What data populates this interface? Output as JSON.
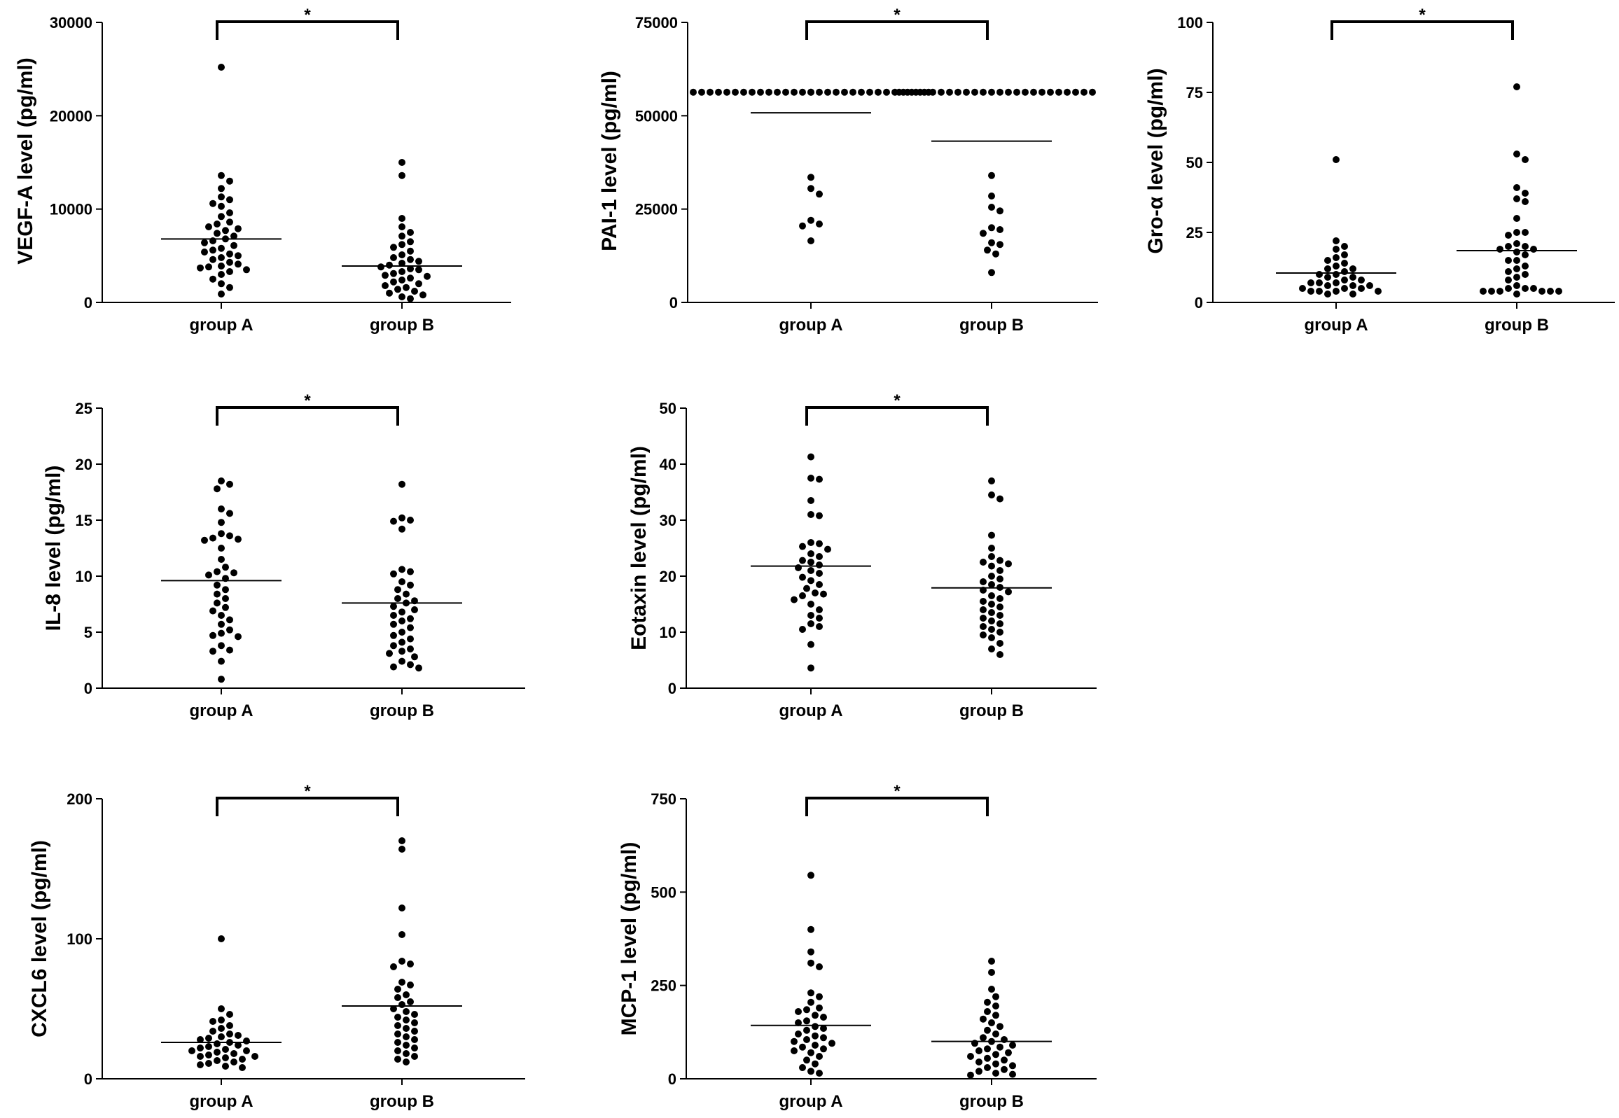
{
  "chart_data": [
    {
      "type": "scatter",
      "ylabel": "VEGF-A level (pg/ml)",
      "ylim": [
        0,
        30000
      ],
      "yticks": [
        0,
        10000,
        20000,
        30000
      ],
      "categories": [
        "group A",
        "group B"
      ],
      "means": [
        6800,
        3900
      ],
      "significance": "*",
      "series": [
        {
          "name": "group A",
          "values": [
            25200,
            13600,
            13000,
            12200,
            11300,
            11000,
            10600,
            10300,
            9600,
            9200,
            8600,
            8400,
            8100,
            7900,
            7700,
            7400,
            7100,
            6800,
            6600,
            6400,
            6100,
            5800,
            5600,
            5400,
            5200,
            5000,
            4800,
            4600,
            4300,
            4100,
            3900,
            3800,
            3700,
            3500,
            3300,
            3000,
            2500,
            2000,
            1600,
            900
          ]
        },
        {
          "name": "group B",
          "values": [
            15000,
            13600,
            9000,
            8100,
            7500,
            7100,
            6500,
            6200,
            5900,
            5500,
            5100,
            4800,
            4600,
            4400,
            4200,
            4000,
            3800,
            3600,
            3500,
            3300,
            3100,
            2900,
            2800,
            2600,
            2400,
            2200,
            2000,
            1800,
            1600,
            1400,
            1200,
            1000,
            800,
            600,
            400
          ]
        }
      ]
    },
    {
      "type": "scatter",
      "ylabel": "PAI-1 level (pg/ml)",
      "ylim": [
        0,
        75000
      ],
      "yticks": [
        0,
        25000,
        50000,
        75000
      ],
      "categories": [
        "group A",
        "group B"
      ],
      "means": [
        50800,
        43200
      ],
      "significance": "*",
      "series": [
        {
          "name": "group A",
          "values": [
            56300,
            56300,
            56300,
            56300,
            56300,
            56300,
            56300,
            56300,
            56300,
            56300,
            56300,
            56300,
            56300,
            56300,
            56300,
            56300,
            56300,
            56300,
            56300,
            56300,
            56300,
            56300,
            56300,
            56300,
            56300,
            56300,
            56300,
            56300,
            56300,
            56300,
            33500,
            30500,
            29000,
            22000,
            21000,
            20500,
            16500
          ]
        },
        {
          "name": "group B",
          "values": [
            56300,
            56300,
            56300,
            56300,
            56300,
            56300,
            56300,
            56300,
            56300,
            56300,
            56300,
            56300,
            56300,
            56300,
            56300,
            56300,
            56300,
            56300,
            56300,
            56300,
            56300,
            56300,
            56300,
            56300,
            34000,
            28500,
            25500,
            24500,
            20000,
            19500,
            18500,
            16000,
            15500,
            14000,
            13000,
            8000
          ]
        }
      ]
    },
    {
      "type": "scatter",
      "ylabel": "Gro-α level (pg/ml)",
      "ylim": [
        0,
        100
      ],
      "yticks": [
        0,
        25,
        50,
        75,
        100
      ],
      "categories": [
        "group A",
        "group B"
      ],
      "means": [
        10.5,
        18.5
      ],
      "significance": "*",
      "series": [
        {
          "name": "group A",
          "values": [
            51,
            22,
            20,
            19,
            17,
            16,
            15,
            14,
            13,
            12,
            12,
            11,
            10,
            10,
            9,
            9,
            8,
            8,
            7,
            7,
            7,
            6,
            6,
            6,
            5,
            5,
            5,
            4,
            4,
            4,
            4,
            3,
            3
          ]
        },
        {
          "name": "group B",
          "values": [
            77,
            53,
            51,
            41,
            39,
            37,
            36,
            30,
            25,
            25,
            24,
            21,
            20,
            20,
            19,
            19,
            18,
            17,
            15,
            15,
            13,
            12,
            11,
            10,
            9,
            8,
            6,
            5,
            5,
            5,
            4,
            4,
            4,
            4,
            4,
            4,
            3
          ]
        }
      ]
    },
    {
      "type": "scatter",
      "ylabel": "IL-8 level (pg/ml)",
      "ylim": [
        0,
        25
      ],
      "yticks": [
        0,
        5,
        10,
        15,
        20,
        25
      ],
      "categories": [
        "group A",
        "group B"
      ],
      "means": [
        9.6,
        7.6
      ],
      "significance": "*",
      "series": [
        {
          "name": "group A",
          "values": [
            18.5,
            18.2,
            17.8,
            16,
            15.6,
            14.8,
            13.8,
            13.6,
            13.4,
            13.3,
            13.2,
            12.5,
            11.5,
            10.8,
            10.4,
            10.3,
            10.1,
            9.8,
            9.2,
            8.8,
            8.4,
            8.0,
            7.6,
            7.2,
            6.9,
            6.5,
            6.1,
            5.7,
            5.2,
            4.9,
            4.7,
            4.6,
            3.8,
            3.4,
            3.3,
            2.4,
            0.8
          ]
        },
        {
          "name": "group B",
          "values": [
            18.2,
            15.2,
            15.0,
            14.9,
            14.2,
            10.6,
            10.4,
            10.2,
            9.5,
            9.2,
            8.8,
            8.4,
            8.0,
            7.8,
            7.6,
            7.3,
            7.0,
            6.8,
            6.5,
            6.2,
            6.0,
            5.7,
            5.4,
            5.0,
            4.7,
            4.4,
            4.1,
            3.8,
            3.5,
            3.3,
            3.1,
            2.8,
            2.4,
            2.1,
            1.9,
            1.8
          ]
        }
      ]
    },
    {
      "type": "scatter",
      "ylabel": "Eotaxin level (pg/ml)",
      "ylim": [
        0,
        50
      ],
      "yticks": [
        0,
        10,
        20,
        30,
        40,
        50
      ],
      "categories": [
        "group A",
        "group B"
      ],
      "means": [
        21.8,
        17.9
      ],
      "significance": "*",
      "series": [
        {
          "name": "group A",
          "values": [
            41.3,
            37.5,
            37.3,
            33.5,
            31.0,
            30.8,
            26.0,
            25.8,
            25.3,
            24.8,
            24.0,
            23.5,
            22.8,
            22.5,
            22.0,
            21.5,
            21.0,
            20.5,
            19.8,
            19.2,
            18.5,
            17.8,
            17.0,
            16.8,
            16.5,
            15.8,
            15.0,
            14.0,
            13.0,
            12.5,
            11.5,
            11.0,
            10.5,
            7.8,
            3.6
          ]
        },
        {
          "name": "group B",
          "values": [
            37.0,
            34.5,
            33.8,
            27.3,
            25.0,
            23.5,
            22.8,
            22.5,
            22.2,
            21.8,
            21.0,
            20.0,
            19.5,
            19.0,
            18.5,
            18.0,
            17.5,
            17.2,
            16.5,
            16.0,
            15.5,
            15.0,
            14.5,
            14.0,
            13.5,
            13.0,
            12.5,
            12.0,
            11.5,
            11.0,
            10.5,
            10.0,
            9.5,
            9.0,
            8.0,
            7.0,
            6.0
          ]
        }
      ]
    },
    {
      "type": "scatter",
      "ylabel": "CXCL6 level (pg/ml)",
      "ylim": [
        0,
        200
      ],
      "yticks": [
        0,
        100,
        200
      ],
      "categories": [
        "group A",
        "group B"
      ],
      "means": [
        26,
        52
      ],
      "significance": "*",
      "series": [
        {
          "name": "group A",
          "values": [
            100,
            50,
            46,
            42,
            41,
            38,
            36,
            34,
            32,
            31,
            30,
            29,
            28,
            27,
            26,
            25,
            24,
            23,
            22,
            21,
            20,
            20,
            19,
            18,
            17,
            16,
            16,
            15,
            14,
            13,
            12,
            11,
            10,
            9,
            8
          ]
        },
        {
          "name": "group B",
          "values": [
            170,
            164,
            122,
            103,
            84,
            82,
            80,
            69,
            67,
            64,
            60,
            58,
            55,
            53,
            50,
            48,
            46,
            44,
            42,
            40,
            38,
            36,
            34,
            32,
            30,
            28,
            26,
            24,
            22,
            20,
            18,
            16,
            14,
            12
          ]
        }
      ]
    },
    {
      "type": "scatter",
      "ylabel": "MCP-1 level (pg/ml)",
      "ylim": [
        0,
        750
      ],
      "yticks": [
        0,
        250,
        500,
        750
      ],
      "categories": [
        "group A",
        "group B"
      ],
      "means": [
        143,
        100
      ],
      "significance": "*",
      "series": [
        {
          "name": "group A",
          "values": [
            545,
            400,
            340,
            310,
            300,
            230,
            220,
            205,
            190,
            185,
            180,
            170,
            165,
            155,
            150,
            140,
            135,
            130,
            120,
            115,
            110,
            105,
            100,
            95,
            90,
            85,
            80,
            75,
            70,
            60,
            50,
            40,
            30,
            20,
            15
          ]
        },
        {
          "name": "group B",
          "values": [
            315,
            285,
            240,
            220,
            205,
            195,
            180,
            170,
            160,
            150,
            140,
            130,
            120,
            110,
            105,
            100,
            95,
            90,
            85,
            80,
            75,
            70,
            65,
            60,
            55,
            50,
            45,
            40,
            35,
            30,
            25,
            20,
            15,
            12,
            10
          ]
        }
      ]
    }
  ]
}
